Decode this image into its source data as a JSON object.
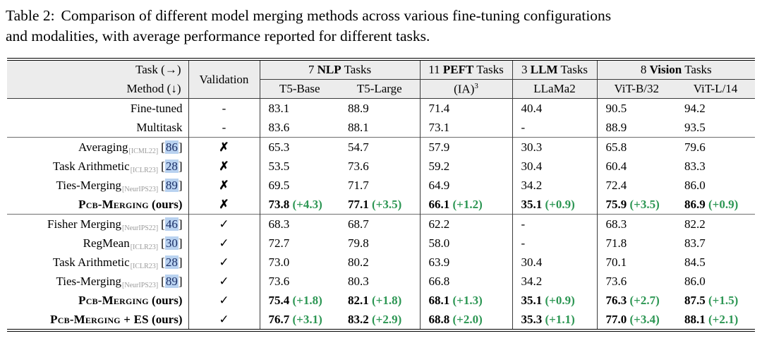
{
  "caption": {
    "label": "Table 2:",
    "line1_rest": "Comparison of different model merging methods across various fine-tuning configurations",
    "line2": "and modalities, with average performance reported for different tasks."
  },
  "colors": {
    "header_bg": "#ececec",
    "delta_green": "#2c9653",
    "citation_highlight": "#b9d2f0"
  },
  "table": {
    "header": {
      "task_label": "Task (→)",
      "method_label": "Method (↓)",
      "validation_label": "Validation",
      "groups": [
        {
          "prefix": "7",
          "bold": "NLP",
          "suffix": "Tasks",
          "cols": [
            {
              "label": "T5-Base"
            },
            {
              "label": "T5-Large"
            }
          ]
        },
        {
          "prefix": "11",
          "bold": "PEFT",
          "suffix": "Tasks",
          "cols": [
            {
              "label": "(IA)",
              "sup": "3"
            }
          ]
        },
        {
          "prefix": "3",
          "bold": "LLM",
          "suffix": "Tasks",
          "cols": [
            {
              "label": "LLaMa2"
            }
          ]
        },
        {
          "prefix": "8",
          "bold": "Vision",
          "suffix": "Tasks",
          "cols": [
            {
              "label": "ViT-B/32"
            },
            {
              "label": "ViT-L/14"
            }
          ]
        }
      ]
    },
    "rows": [
      {
        "method": {
          "name": "Fine-tuned"
        },
        "validation": "-",
        "values": [
          {
            "v": "83.1"
          },
          {
            "v": "88.9"
          },
          {
            "v": "71.4"
          },
          {
            "v": "40.4"
          },
          {
            "v": "90.5"
          },
          {
            "v": "94.2"
          }
        ]
      },
      {
        "method": {
          "name": "Multitask"
        },
        "validation": "-",
        "values": [
          {
            "v": "83.6"
          },
          {
            "v": "88.1"
          },
          {
            "v": "73.1"
          },
          {
            "v": "-"
          },
          {
            "v": "88.9"
          },
          {
            "v": "93.5"
          }
        ]
      },
      {
        "section_start": true,
        "method": {
          "name": "Averaging",
          "venue": "[ICML22]",
          "cite": "86"
        },
        "validation": "✗",
        "values": [
          {
            "v": "65.3"
          },
          {
            "v": "54.7"
          },
          {
            "v": "57.9"
          },
          {
            "v": "30.3"
          },
          {
            "v": "65.8"
          },
          {
            "v": "79.6"
          }
        ]
      },
      {
        "method": {
          "name": "Task Arithmetic",
          "venue": "[ICLR23]",
          "cite": "28"
        },
        "validation": "✗",
        "values": [
          {
            "v": "53.5"
          },
          {
            "v": "73.6"
          },
          {
            "v": "59.2"
          },
          {
            "v": "30.4"
          },
          {
            "v": "60.4"
          },
          {
            "v": "83.3"
          }
        ]
      },
      {
        "method": {
          "name": "Ties-Merging",
          "venue": "[NeurIPS23]",
          "cite": "89"
        },
        "validation": "✗",
        "values": [
          {
            "v": "69.5"
          },
          {
            "v": "71.7"
          },
          {
            "v": "64.9"
          },
          {
            "v": "34.2"
          },
          {
            "v": "72.4"
          },
          {
            "v": "86.0"
          }
        ]
      },
      {
        "ours": true,
        "method": {
          "name": "Pcb-Merging",
          "tag": "(ours)"
        },
        "validation": "✗",
        "values": [
          {
            "v": "73.8",
            "d": "+4.3"
          },
          {
            "v": "77.1",
            "d": "+3.5"
          },
          {
            "v": "66.1",
            "d": "+1.2"
          },
          {
            "v": "35.1",
            "d": "+0.9"
          },
          {
            "v": "75.9",
            "d": "+3.5"
          },
          {
            "v": "86.9",
            "d": "+0.9"
          }
        ]
      },
      {
        "section_start": true,
        "method": {
          "name": "Fisher Merging",
          "venue": "[NeurIPS22]",
          "cite": "46"
        },
        "validation": "✓",
        "values": [
          {
            "v": "68.3"
          },
          {
            "v": "68.7"
          },
          {
            "v": "62.2"
          },
          {
            "v": "-"
          },
          {
            "v": "68.3"
          },
          {
            "v": "82.2"
          }
        ]
      },
      {
        "method": {
          "name": "RegMean",
          "venue": "[ICLR23]",
          "cite": "30"
        },
        "validation": "✓",
        "values": [
          {
            "v": "72.7"
          },
          {
            "v": "79.8"
          },
          {
            "v": "58.0"
          },
          {
            "v": "-"
          },
          {
            "v": "71.8"
          },
          {
            "v": "83.7"
          }
        ]
      },
      {
        "method": {
          "name": "Task Arithmetic",
          "venue": "[ICLR23]",
          "cite": "28"
        },
        "validation": "✓",
        "values": [
          {
            "v": "73.0"
          },
          {
            "v": "80.2"
          },
          {
            "v": "63.9"
          },
          {
            "v": "30.4"
          },
          {
            "v": "70.1"
          },
          {
            "v": "84.5"
          }
        ]
      },
      {
        "method": {
          "name": "Ties-Merging",
          "venue": "[NeurIPS23]",
          "cite": "89"
        },
        "validation": "✓",
        "values": [
          {
            "v": "73.6"
          },
          {
            "v": "80.3"
          },
          {
            "v": "66.8"
          },
          {
            "v": "34.2"
          },
          {
            "v": "73.6"
          },
          {
            "v": "86.0"
          }
        ]
      },
      {
        "ours": true,
        "method": {
          "name": "Pcb-Merging",
          "tag": "(ours)"
        },
        "validation": "✓",
        "values": [
          {
            "v": "75.4",
            "d": "+1.8"
          },
          {
            "v": "82.1",
            "d": "+1.8"
          },
          {
            "v": "68.1",
            "d": "+1.3"
          },
          {
            "v": "35.1",
            "d": "+0.9"
          },
          {
            "v": "76.3",
            "d": "+2.7"
          },
          {
            "v": "87.5",
            "d": "+1.5"
          }
        ]
      },
      {
        "ours": true,
        "method": {
          "name": "Pcb-Merging + ES",
          "tag": "(ours)"
        },
        "validation": "✓",
        "values": [
          {
            "v": "76.7",
            "d": "+3.1"
          },
          {
            "v": "83.2",
            "d": "+2.9"
          },
          {
            "v": "68.8",
            "d": "+2.0"
          },
          {
            "v": "35.3",
            "d": "+1.1"
          },
          {
            "v": "77.0",
            "d": "+3.4"
          },
          {
            "v": "88.1",
            "d": "+2.1"
          }
        ]
      }
    ]
  }
}
